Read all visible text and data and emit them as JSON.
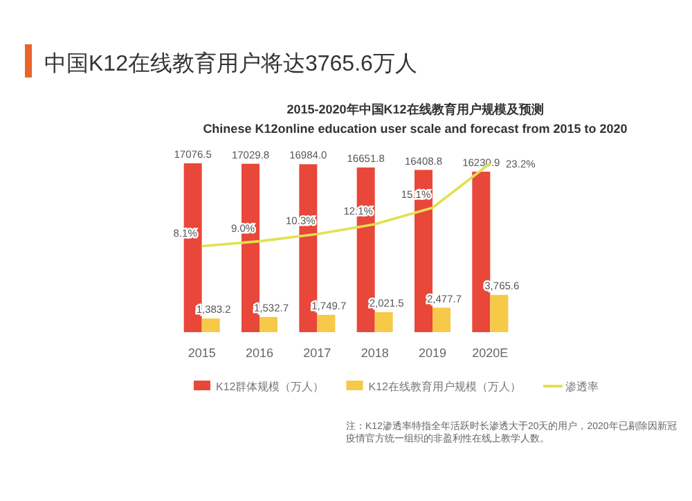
{
  "chart_data": {
    "type": "bar",
    "title": "中国K12在线教育用户将达3765.6万人",
    "subtitle": "2015-2020年中国K12在线教育用户规模及预测\nChinese K12online education user scale and forecast from 2015 to 2020",
    "categories": [
      "2015",
      "2016",
      "2017",
      "2018",
      "2019",
      "2020E"
    ],
    "series": [
      {
        "name": "K12群体规模（万人）",
        "color": "#e8473a",
        "values": [
          17076.5,
          17029.8,
          16984.0,
          16651.8,
          16408.8,
          16230.9
        ],
        "value_labels": [
          "17076.5",
          "17029.8",
          "16984.0",
          "16651.8",
          "16408.8",
          "16230.9"
        ]
      },
      {
        "name": "K12在线教育用户规模（万人）",
        "color": "#f7c948",
        "values": [
          1383.2,
          1532.7,
          1749.7,
          2021.5,
          2477.7,
          3765.6
        ],
        "value_labels": [
          "1,383.2",
          "1,532.7",
          "1,749.7",
          "2,021.5",
          "2,477.7",
          "3,765.6"
        ]
      },
      {
        "name": "渗透率",
        "type": "line",
        "axis": "y2",
        "color": "#e3e04f",
        "values": [
          8.1,
          9.0,
          10.3,
          12.1,
          15.1,
          23.2
        ],
        "value_labels": [
          "8.1%",
          "9.0%",
          "10.3%",
          "12.1%",
          "15.1%",
          "23.2%"
        ]
      }
    ],
    "tick_labels": "x",
    "legend": "bottom",
    "marker": "none",
    "grid": false,
    "annotations": [
      "注：K12渗透率特指全年活跃时长渗透大于20天的用户，2020年已剔除因新冠疫情官方统一组织的非盈利性在线上教学人数。"
    ]
  }
}
